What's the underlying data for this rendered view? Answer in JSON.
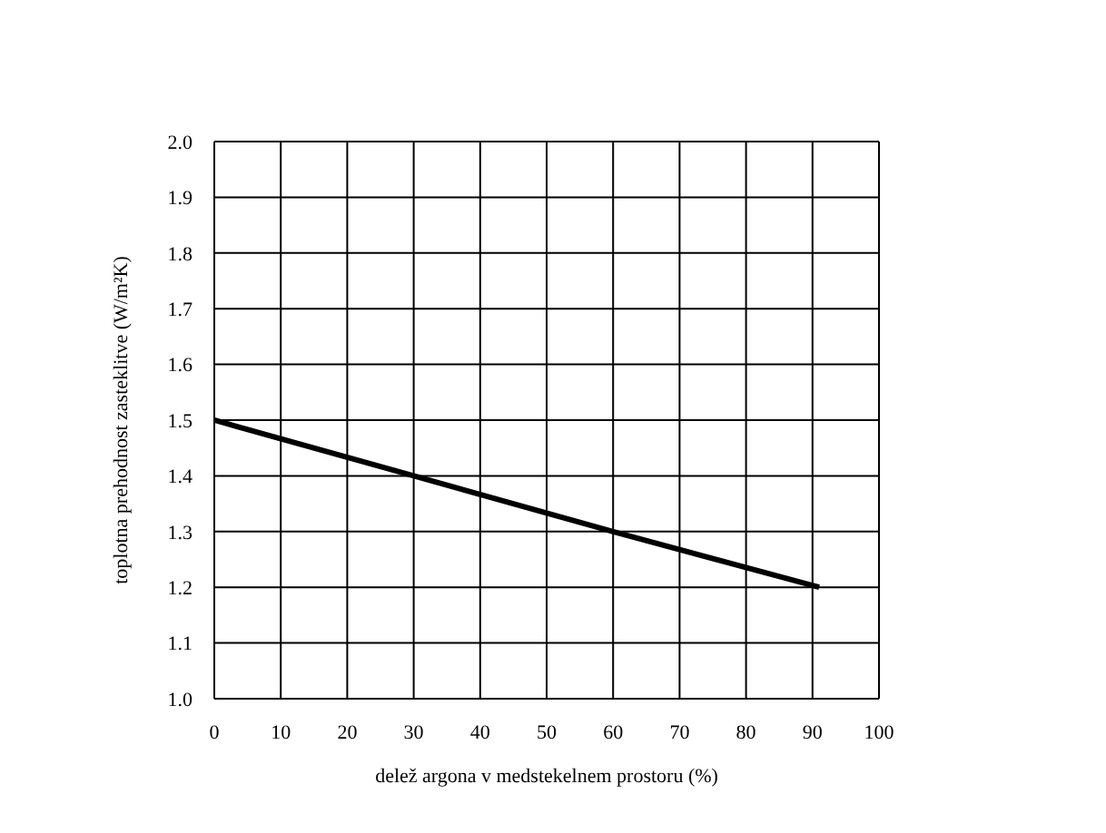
{
  "chart_data": {
    "type": "line",
    "xlabel": "delež argona v medstekelnem prostoru (%)",
    "ylabel": "toplotna prehodnost zasteklitve (W/m²K)",
    "x": [
      0,
      30,
      60,
      91
    ],
    "series": [
      {
        "color": "#000000",
        "values": [
          1.5,
          1.4,
          1.3,
          1.2
        ]
      }
    ],
    "xlim": [
      0,
      100
    ],
    "xticks": [
      0,
      10,
      20,
      30,
      40,
      50,
      60,
      70,
      80,
      90,
      100
    ],
    "ylim": [
      1.0,
      2.0
    ],
    "yticks": [
      {
        "value": 1.0,
        "label": "1.0"
      },
      1.1,
      1.2,
      1.3,
      1.4,
      1.5,
      1.6,
      1.7,
      1.8,
      1.9,
      {
        "value": 2.0,
        "label": "2.0"
      }
    ],
    "grid": true,
    "legend": false,
    "marker": "none",
    "line_style": "solid"
  }
}
